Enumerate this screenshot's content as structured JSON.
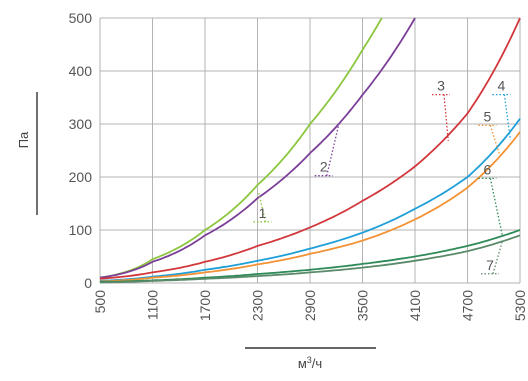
{
  "chart_data": {
    "type": "line",
    "ylabel": "Па",
    "xlabel_base": "м",
    "xlabel_sup": "3",
    "xlabel_tail": "/ч",
    "xlim": [
      500,
      5300
    ],
    "ylim": [
      0,
      500
    ],
    "xticks": [
      500,
      1100,
      1700,
      2300,
      2900,
      3500,
      4100,
      4700,
      5300
    ],
    "yticks": [
      0,
      100,
      200,
      300,
      400,
      500
    ],
    "grid": true,
    "series": [
      {
        "name": "1",
        "color": "#8cc63f",
        "x": [
          500,
          1100,
          1700,
          2300,
          2900,
          3500,
          3720
        ],
        "y": [
          10,
          45,
          100,
          185,
          300,
          440,
          500
        ]
      },
      {
        "name": "2",
        "color": "#7b3f98",
        "x": [
          500,
          1100,
          1700,
          2300,
          2900,
          3500,
          4100
        ],
        "y": [
          10,
          40,
          90,
          160,
          245,
          355,
          500
        ]
      },
      {
        "name": "3",
        "color": "#d2373c",
        "x": [
          500,
          1100,
          1700,
          2300,
          2900,
          3500,
          4100,
          4700,
          5300
        ],
        "y": [
          8,
          20,
          40,
          70,
          105,
          155,
          220,
          320,
          500
        ]
      },
      {
        "name": "4",
        "color": "#1f9fd8",
        "x": [
          500,
          1100,
          1700,
          2300,
          2900,
          3500,
          4100,
          4700,
          5300
        ],
        "y": [
          4,
          12,
          25,
          42,
          65,
          95,
          140,
          200,
          310
        ]
      },
      {
        "name": "5",
        "color": "#f39234",
        "x": [
          500,
          1100,
          1700,
          2300,
          2900,
          3500,
          4100,
          4700,
          5300
        ],
        "y": [
          3,
          10,
          20,
          35,
          55,
          80,
          120,
          180,
          285
        ]
      },
      {
        "name": "6",
        "color": "#2e8b57",
        "x": [
          500,
          1100,
          1700,
          2300,
          2900,
          3500,
          4100,
          4700,
          5300
        ],
        "y": [
          2,
          5,
          10,
          17,
          25,
          36,
          50,
          70,
          100
        ]
      },
      {
        "name": "7",
        "color": "#5a8a6a",
        "x": [
          500,
          1100,
          1700,
          2300,
          2900,
          3500,
          4100,
          4700,
          5300
        ],
        "y": [
          1,
          4,
          8,
          13,
          20,
          29,
          42,
          60,
          90
        ]
      }
    ],
    "annotations": [
      {
        "text": "1",
        "series": "1",
        "x": 2300,
        "y": 123,
        "lx": 2315,
        "ly": 170
      },
      {
        "text": "2",
        "series": "2",
        "x": 3000,
        "y": 210,
        "lx": 3230,
        "ly": 300
      },
      {
        "text": "3",
        "series": "3",
        "x": 4340,
        "y": 363,
        "lx": 4480,
        "ly": 268
      },
      {
        "text": "4",
        "series": "4",
        "x": 5030,
        "y": 363,
        "lx": 5190,
        "ly": 270
      },
      {
        "text": "5",
        "series": "5",
        "x": 4870,
        "y": 305,
        "lx": 5080,
        "ly": 235
      },
      {
        "text": "6",
        "series": "6",
        "x": 4870,
        "y": 205,
        "lx": 5100,
        "ly": 88
      },
      {
        "text": "7",
        "series": "7",
        "x": 4900,
        "y": 25,
        "lx": 5100,
        "ly": 80
      }
    ]
  }
}
